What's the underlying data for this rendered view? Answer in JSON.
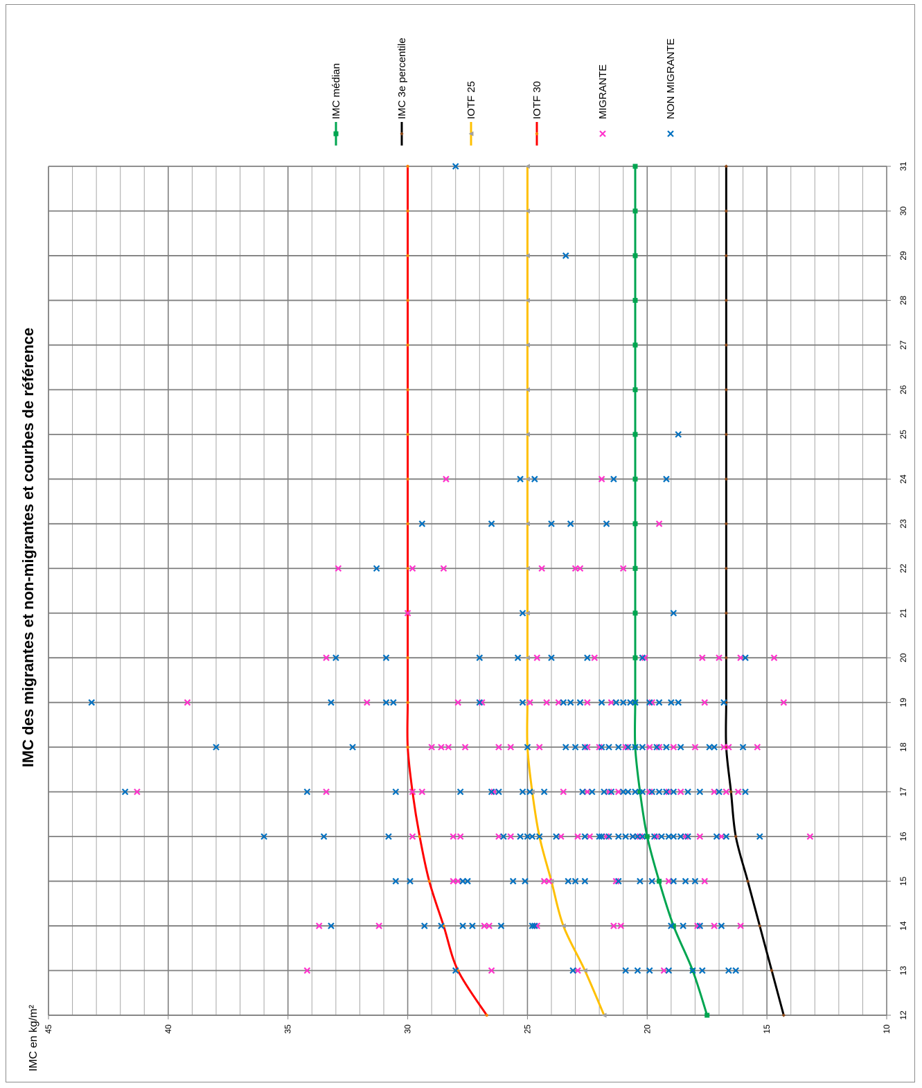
{
  "chart_data": {
    "type": "line",
    "title": "IMC des migrantes et non-migrantes et courbes de référence",
    "xlabel": "",
    "ylabel": "IMC en kg/m²",
    "xlim": [
      12,
      31
    ],
    "ylim": [
      10,
      45
    ],
    "x_ticks": [
      "12",
      "13",
      "14",
      "15",
      "16",
      "17",
      "18",
      "19",
      "20",
      "21",
      "22",
      "23",
      "24",
      "25",
      "26",
      "27",
      "28",
      "29",
      "30",
      "31"
    ],
    "y_ticks": [
      "10",
      "15",
      "20",
      "25",
      "30",
      "35",
      "40",
      "45"
    ],
    "orientation": "rotated-90-clockwise",
    "grid": true,
    "legend_position": "right",
    "series": [
      {
        "name": "IMC médian",
        "kind": "line",
        "color": "#00a550",
        "marker": "square",
        "x": [
          12,
          13,
          14,
          15,
          16,
          17,
          18,
          19,
          20,
          21,
          22,
          23,
          24,
          25,
          26,
          27,
          28,
          29,
          30,
          31
        ],
        "values": [
          17.5,
          18.1,
          18.9,
          19.5,
          20.0,
          20.3,
          20.5,
          20.5,
          20.5,
          20.5,
          20.5,
          20.5,
          20.5,
          20.5,
          20.5,
          20.5,
          20.5,
          20.5,
          20.5,
          20.5
        ]
      },
      {
        "name": "IMC 3e percentile",
        "kind": "line",
        "color": "#000000",
        "marker": "diamond",
        "x": [
          12,
          13,
          14,
          15,
          16,
          17,
          18,
          19,
          20,
          21,
          22,
          23,
          24,
          25,
          26,
          27,
          28,
          29,
          30,
          31
        ],
        "values": [
          14.3,
          14.8,
          15.3,
          15.8,
          16.3,
          16.5,
          16.7,
          16.7,
          16.7,
          16.7,
          16.7,
          16.7,
          16.7,
          16.7,
          16.7,
          16.7,
          16.7,
          16.7,
          16.7,
          16.7
        ]
      },
      {
        "name": "IOTF 25",
        "kind": "line",
        "color": "#ffc000",
        "marker": "triangle",
        "x": [
          12,
          13,
          14,
          15,
          16,
          17,
          18,
          19,
          20,
          21,
          22,
          23,
          24,
          25,
          26,
          27,
          28,
          29,
          30,
          31
        ],
        "values": [
          21.8,
          22.6,
          23.5,
          24.0,
          24.5,
          24.8,
          25.0,
          25.0,
          25.0,
          25.0,
          25.0,
          25.0,
          25.0,
          25.0,
          25.0,
          25.0,
          25.0,
          25.0,
          25.0,
          25.0
        ]
      },
      {
        "name": "IOTF 30",
        "kind": "line",
        "color": "#ff0000",
        "marker": "dot",
        "x": [
          12,
          13,
          14,
          15,
          16,
          17,
          18,
          19,
          20,
          21,
          22,
          23,
          24,
          25,
          26,
          27,
          28,
          29,
          30,
          31
        ],
        "values": [
          26.7,
          27.9,
          28.5,
          29.1,
          29.5,
          29.8,
          30.0,
          30.0,
          30.0,
          30.0,
          30.0,
          30.0,
          30.0,
          30.0,
          30.0,
          30.0,
          30.0,
          30.0,
          30.0,
          30.0
        ]
      },
      {
        "name": "MIGRANTE",
        "kind": "scatter",
        "color": "#ff33cc",
        "marker": "x",
        "points": [
          [
            13,
            34.2
          ],
          [
            13,
            26.5
          ],
          [
            13,
            22.9
          ],
          [
            13,
            19.3
          ],
          [
            14,
            33.7
          ],
          [
            14,
            31.2
          ],
          [
            14,
            26.8
          ],
          [
            14,
            26.6
          ],
          [
            14,
            24.6
          ],
          [
            14,
            21.4
          ],
          [
            14,
            21.1
          ],
          [
            14,
            17.9
          ],
          [
            14,
            17.2
          ],
          [
            14,
            16.1
          ],
          [
            15,
            28.1
          ],
          [
            15,
            27.9
          ],
          [
            15,
            24.3
          ],
          [
            15,
            24.1
          ],
          [
            15,
            21.3
          ],
          [
            15,
            19.1
          ],
          [
            15,
            17.6
          ],
          [
            16,
            29.8
          ],
          [
            16,
            28.1
          ],
          [
            16,
            27.8
          ],
          [
            16,
            26.2
          ],
          [
            16,
            25.7
          ],
          [
            16,
            23.6
          ],
          [
            16,
            22.9
          ],
          [
            16,
            22.4
          ],
          [
            16,
            21.7
          ],
          [
            16,
            20.6
          ],
          [
            16,
            20.3
          ],
          [
            16,
            19.6
          ],
          [
            16,
            18.4
          ],
          [
            16,
            17.8
          ],
          [
            16,
            16.9
          ],
          [
            16,
            13.2
          ],
          [
            17,
            41.3
          ],
          [
            17,
            33.4
          ],
          [
            17,
            29.8
          ],
          [
            17,
            29.4
          ],
          [
            17,
            26.4
          ],
          [
            17,
            23.5
          ],
          [
            17,
            22.5
          ],
          [
            17,
            21.6
          ],
          [
            17,
            21.2
          ],
          [
            17,
            19.9
          ],
          [
            17,
            19.1
          ],
          [
            17,
            18.6
          ],
          [
            17,
            17.2
          ],
          [
            17,
            16.7
          ],
          [
            17,
            16.2
          ],
          [
            18,
            29.0
          ],
          [
            18,
            28.6
          ],
          [
            18,
            28.3
          ],
          [
            18,
            27.6
          ],
          [
            18,
            26.2
          ],
          [
            18,
            25.7
          ],
          [
            18,
            24.5
          ],
          [
            18,
            22.5
          ],
          [
            18,
            22.0
          ],
          [
            18,
            20.9
          ],
          [
            18,
            19.9
          ],
          [
            18,
            19.5
          ],
          [
            18,
            18.9
          ],
          [
            18,
            18.0
          ],
          [
            18,
            16.8
          ],
          [
            18,
            16.6
          ],
          [
            18,
            15.4
          ],
          [
            19,
            39.2
          ],
          [
            19,
            31.7
          ],
          [
            19,
            27.9
          ],
          [
            19,
            26.9
          ],
          [
            19,
            24.9
          ],
          [
            19,
            24.2
          ],
          [
            19,
            23.7
          ],
          [
            19,
            22.5
          ],
          [
            19,
            21.5
          ],
          [
            19,
            19.8
          ],
          [
            19,
            17.6
          ],
          [
            19,
            14.3
          ],
          [
            20,
            33.4
          ],
          [
            20,
            24.6
          ],
          [
            20,
            22.2
          ],
          [
            20,
            20.1
          ],
          [
            20,
            17.7
          ],
          [
            20,
            17.0
          ],
          [
            20,
            16.1
          ],
          [
            20,
            14.7
          ],
          [
            21,
            30.0
          ],
          [
            22,
            32.9
          ],
          [
            22,
            29.8
          ],
          [
            22,
            28.5
          ],
          [
            22,
            24.4
          ],
          [
            22,
            23.0
          ],
          [
            22,
            22.8
          ],
          [
            22,
            21.0
          ],
          [
            23,
            19.5
          ],
          [
            24,
            28.4
          ],
          [
            24,
            21.9
          ]
        ]
      },
      {
        "name": "NON MIGRANTE",
        "kind": "scatter",
        "color": "#0070c0",
        "marker": "x",
        "points": [
          [
            13,
            28.0
          ],
          [
            13,
            23.1
          ],
          [
            13,
            20.9
          ],
          [
            13,
            20.4
          ],
          [
            13,
            19.9
          ],
          [
            13,
            19.1
          ],
          [
            13,
            18.1
          ],
          [
            13,
            17.7
          ],
          [
            13,
            16.6
          ],
          [
            13,
            16.3
          ],
          [
            14,
            33.2
          ],
          [
            14,
            29.3
          ],
          [
            14,
            28.6
          ],
          [
            14,
            27.7
          ],
          [
            14,
            27.3
          ],
          [
            14,
            26.1
          ],
          [
            14,
            24.8
          ],
          [
            14,
            24.7
          ],
          [
            14,
            19.0
          ],
          [
            14,
            18.5
          ],
          [
            14,
            17.8
          ],
          [
            14,
            16.9
          ],
          [
            15,
            30.5
          ],
          [
            15,
            29.9
          ],
          [
            15,
            27.7
          ],
          [
            15,
            27.5
          ],
          [
            15,
            25.6
          ],
          [
            15,
            25.1
          ],
          [
            15,
            23.3
          ],
          [
            15,
            23.0
          ],
          [
            15,
            22.6
          ],
          [
            15,
            21.2
          ],
          [
            15,
            20.3
          ],
          [
            15,
            19.8
          ],
          [
            15,
            18.9
          ],
          [
            15,
            18.4
          ],
          [
            15,
            18.0
          ],
          [
            16,
            36.0
          ],
          [
            16,
            33.5
          ],
          [
            16,
            30.8
          ],
          [
            16,
            26.0
          ],
          [
            16,
            25.3
          ],
          [
            16,
            25.0
          ],
          [
            16,
            24.8
          ],
          [
            16,
            24.5
          ],
          [
            16,
            23.8
          ],
          [
            16,
            22.6
          ],
          [
            16,
            22.0
          ],
          [
            16,
            21.9
          ],
          [
            16,
            21.6
          ],
          [
            16,
            21.2
          ],
          [
            16,
            20.9
          ],
          [
            16,
            20.6
          ],
          [
            16,
            20.4
          ],
          [
            16,
            20.2
          ],
          [
            16,
            19.7
          ],
          [
            16,
            19.4
          ],
          [
            16,
            19.1
          ],
          [
            16,
            18.9
          ],
          [
            16,
            18.6
          ],
          [
            16,
            18.3
          ],
          [
            16,
            17.1
          ],
          [
            16,
            16.7
          ],
          [
            16,
            15.3
          ],
          [
            17,
            41.8
          ],
          [
            17,
            34.2
          ],
          [
            17,
            30.5
          ],
          [
            17,
            27.8
          ],
          [
            17,
            26.5
          ],
          [
            17,
            26.2
          ],
          [
            17,
            25.2
          ],
          [
            17,
            24.9
          ],
          [
            17,
            24.3
          ],
          [
            17,
            22.7
          ],
          [
            17,
            22.3
          ],
          [
            17,
            21.8
          ],
          [
            17,
            21.5
          ],
          [
            17,
            21.0
          ],
          [
            17,
            20.8
          ],
          [
            17,
            20.5
          ],
          [
            17,
            20.2
          ],
          [
            17,
            19.8
          ],
          [
            17,
            19.5
          ],
          [
            17,
            19.2
          ],
          [
            17,
            18.9
          ],
          [
            17,
            18.3
          ],
          [
            17,
            17.8
          ],
          [
            17,
            17.0
          ],
          [
            17,
            15.9
          ],
          [
            18,
            38.0
          ],
          [
            18,
            32.3
          ],
          [
            18,
            25.0
          ],
          [
            18,
            23.4
          ],
          [
            18,
            23.0
          ],
          [
            18,
            22.6
          ],
          [
            18,
            21.9
          ],
          [
            18,
            21.6
          ],
          [
            18,
            21.2
          ],
          [
            18,
            20.8
          ],
          [
            18,
            20.5
          ],
          [
            18,
            20.2
          ],
          [
            18,
            19.6
          ],
          [
            18,
            19.2
          ],
          [
            18,
            18.6
          ],
          [
            18,
            17.4
          ],
          [
            18,
            17.2
          ],
          [
            18,
            16.0
          ],
          [
            19,
            43.2
          ],
          [
            19,
            33.2
          ],
          [
            19,
            30.9
          ],
          [
            19,
            30.6
          ],
          [
            19,
            27.0
          ],
          [
            19,
            25.2
          ],
          [
            19,
            23.5
          ],
          [
            19,
            23.2
          ],
          [
            19,
            22.8
          ],
          [
            19,
            21.9
          ],
          [
            19,
            21.3
          ],
          [
            19,
            21.0
          ],
          [
            19,
            20.7
          ],
          [
            19,
            20.5
          ],
          [
            19,
            19.9
          ],
          [
            19,
            19.5
          ],
          [
            19,
            19.0
          ],
          [
            19,
            18.7
          ],
          [
            19,
            16.8
          ],
          [
            20,
            33.0
          ],
          [
            20,
            30.9
          ],
          [
            20,
            27.0
          ],
          [
            20,
            25.4
          ],
          [
            20,
            24.0
          ],
          [
            20,
            22.5
          ],
          [
            20,
            20.2
          ],
          [
            20,
            15.9
          ],
          [
            21,
            25.2
          ],
          [
            21,
            18.9
          ],
          [
            22,
            31.3
          ],
          [
            23,
            29.4
          ],
          [
            23,
            26.5
          ],
          [
            23,
            24.0
          ],
          [
            23,
            23.2
          ],
          [
            23,
            21.7
          ],
          [
            24,
            25.3
          ],
          [
            24,
            24.7
          ],
          [
            24,
            21.4
          ],
          [
            24,
            19.2
          ],
          [
            25,
            18.7
          ],
          [
            29,
            23.4
          ],
          [
            31,
            28.0
          ]
        ]
      }
    ]
  }
}
